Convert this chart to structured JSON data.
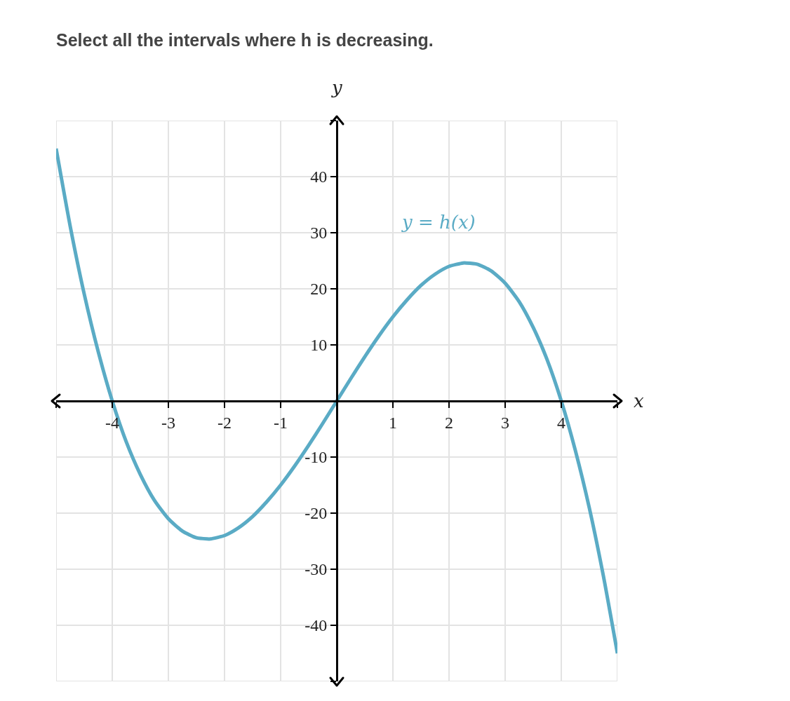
{
  "chart_data": {
    "type": "line",
    "title": "Select all the intervals where h is decreasing.",
    "xlabel": "x",
    "ylabel": "y",
    "x": [
      -5,
      -4.75,
      -4.5,
      -4.25,
      -4,
      -3.75,
      -3.5,
      -3.25,
      -3,
      -2.75,
      -2.5,
      -2.31,
      -2.25,
      -2,
      -1.75,
      -1.5,
      -1.25,
      -1,
      -0.75,
      -0.5,
      -0.25,
      0,
      0.25,
      0.5,
      0.75,
      1,
      1.25,
      1.5,
      1.75,
      2,
      2.25,
      2.31,
      2.5,
      2.75,
      3,
      3.25,
      3.5,
      3.75,
      4,
      4.25,
      4.5,
      4.75,
      5
    ],
    "series": [
      {
        "color": "#5aabc5",
        "values": [
          45,
          31.2,
          19.1,
          8.8,
          0,
          -7.3,
          -13.1,
          -17.7,
          -21,
          -23.2,
          -24.4,
          -24.6,
          -24.6,
          -24,
          -22.6,
          -20.6,
          -18,
          -15,
          -11.6,
          -7.9,
          -4,
          0,
          4,
          7.9,
          11.6,
          15,
          18,
          20.6,
          22.6,
          24,
          24.6,
          24.6,
          24.4,
          23.2,
          21,
          17.7,
          13.1,
          7.3,
          0,
          -8.8,
          -19.1,
          -31.2,
          -45
        ]
      }
    ],
    "annotations": [
      "y = h(x)"
    ],
    "xlim": [
      -5,
      5
    ],
    "ylim": [
      -50,
      50
    ],
    "xticks": [
      {
        "value": -5,
        "label": null
      },
      -4,
      -3,
      -2,
      -1,
      {
        "value": 0,
        "label": null
      },
      1,
      2,
      3,
      4,
      {
        "value": 5,
        "label": null
      }
    ],
    "yticks": [
      {
        "value": -50,
        "label": null
      },
      -40,
      -30,
      -20,
      -10,
      {
        "value": 0,
        "label": null
      },
      10,
      20,
      30,
      40,
      {
        "value": 50,
        "label": null
      }
    ],
    "grid": true,
    "marker": "none",
    "line_style": "solid"
  }
}
